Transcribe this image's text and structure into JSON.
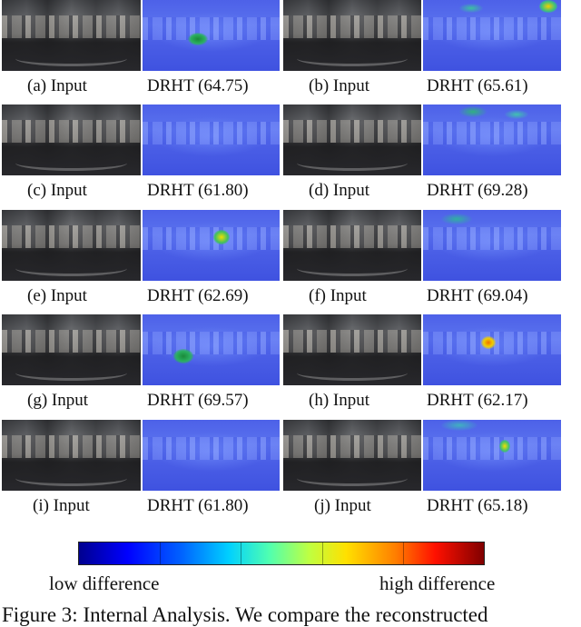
{
  "figure": {
    "pairs": [
      {
        "input_label": "(a) Input",
        "drht_label": "DRHT (64.75)"
      },
      {
        "input_label": "(b) Input",
        "drht_label": "DRHT (65.61)"
      },
      {
        "input_label": "(c) Input",
        "drht_label": "DRHT (61.80)"
      },
      {
        "input_label": "(d) Input",
        "drht_label": "DRHT (69.28)"
      },
      {
        "input_label": "(e) Input",
        "drht_label": "DRHT (62.69)"
      },
      {
        "input_label": "(f) Input",
        "drht_label": "DRHT (69.04)"
      },
      {
        "input_label": "(g) Input",
        "drht_label": "DRHT (69.57)"
      },
      {
        "input_label": "(h) Input",
        "drht_label": "DRHT (62.17)"
      },
      {
        "input_label": "(i) Input",
        "drht_label": "DRHT (61.80)"
      },
      {
        "input_label": "(j) Input",
        "drht_label": "DRHT (65.18)"
      }
    ],
    "colorbar": {
      "low_label": "low difference",
      "high_label": "high difference",
      "colormap": [
        "#00008f",
        "#0000ff",
        "#0060ff",
        "#00d0ff",
        "#50ffb0",
        "#c0ff40",
        "#ffe000",
        "#ff8000",
        "#ff1000",
        "#800000"
      ]
    },
    "caption": "Figure 3: Internal Analysis. We compare the reconstructed"
  }
}
